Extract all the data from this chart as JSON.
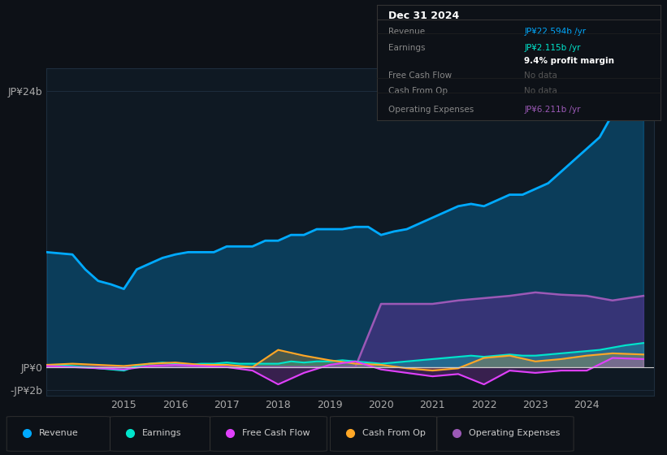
{
  "background_color": "#0d1117",
  "plot_bg_color": "#0f1923",
  "grid_color": "#1e2d3d",
  "ylim": [
    -2500000000.0,
    26000000000.0
  ],
  "xlim": [
    2013.5,
    2025.3
  ],
  "yticks": [
    -2000000000.0,
    0,
    24000000000.0
  ],
  "ytick_labels": [
    "-JP¥2b",
    "JP¥0",
    "JP¥24b"
  ],
  "xtick_years": [
    2015,
    2016,
    2017,
    2018,
    2019,
    2020,
    2021,
    2022,
    2023,
    2024
  ],
  "legend_items": [
    {
      "label": "Revenue",
      "color": "#00aaff"
    },
    {
      "label": "Earnings",
      "color": "#00e5cc"
    },
    {
      "label": "Free Cash Flow",
      "color": "#e040fb"
    },
    {
      "label": "Cash From Op",
      "color": "#ffa726"
    },
    {
      "label": "Operating Expenses",
      "color": "#9b59b6"
    }
  ],
  "tooltip_title": "Dec 31 2024",
  "tooltip_rows": [
    {
      "label": "Revenue",
      "value": "JP¥22.594b /yr",
      "value_color": "#00aaff",
      "label_color": "#888888"
    },
    {
      "label": "Earnings",
      "value": "JP¥2.115b /yr",
      "value_color": "#00e5cc",
      "label_color": "#888888"
    },
    {
      "label": "",
      "value": "9.4% profit margin",
      "value_color": "#ffffff",
      "label_color": "#888888"
    },
    {
      "label": "Free Cash Flow",
      "value": "No data",
      "value_color": "#555555",
      "label_color": "#888888"
    },
    {
      "label": "Cash From Op",
      "value": "No data",
      "value_color": "#555555",
      "label_color": "#888888"
    },
    {
      "label": "Operating Expenses",
      "value": "JP¥6.211b /yr",
      "value_color": "#9b59b6",
      "label_color": "#888888"
    }
  ],
  "revenue_x": [
    2013.5,
    2014.0,
    2014.25,
    2014.5,
    2014.75,
    2015.0,
    2015.25,
    2015.5,
    2015.75,
    2016.0,
    2016.25,
    2016.5,
    2016.75,
    2017.0,
    2017.25,
    2017.5,
    2017.75,
    2018.0,
    2018.25,
    2018.5,
    2018.75,
    2019.0,
    2019.25,
    2019.5,
    2019.75,
    2020.0,
    2020.25,
    2020.5,
    2020.75,
    2021.0,
    2021.25,
    2021.5,
    2021.75,
    2022.0,
    2022.25,
    2022.5,
    2022.75,
    2023.0,
    2023.25,
    2023.5,
    2023.75,
    2024.0,
    2024.25,
    2024.5,
    2024.75,
    2025.1
  ],
  "revenue_y": [
    10000000000.0,
    9800000000.0,
    8500000000.0,
    7500000000.0,
    7200000000.0,
    6800000000.0,
    8500000000.0,
    9000000000.0,
    9500000000.0,
    9800000000.0,
    10000000000.0,
    10000000000.0,
    10000000000.0,
    10500000000.0,
    10500000000.0,
    10500000000.0,
    11000000000.0,
    11000000000.0,
    11500000000.0,
    11500000000.0,
    12000000000.0,
    12000000000.0,
    12000000000.0,
    12200000000.0,
    12200000000.0,
    11500000000.0,
    11800000000.0,
    12000000000.0,
    12500000000.0,
    13000000000.0,
    13500000000.0,
    14000000000.0,
    14200000000.0,
    14000000000.0,
    14500000000.0,
    15000000000.0,
    15000000000.0,
    15500000000.0,
    16000000000.0,
    17000000000.0,
    18000000000.0,
    19000000000.0,
    20000000000.0,
    22000000000.0,
    24000000000.0,
    22600000000.0
  ],
  "earnings_x": [
    2013.5,
    2014.0,
    2014.25,
    2014.5,
    2014.75,
    2015.0,
    2015.25,
    2015.5,
    2015.75,
    2016.0,
    2016.25,
    2016.5,
    2016.75,
    2017.0,
    2017.25,
    2017.5,
    2017.75,
    2018.0,
    2018.25,
    2018.5,
    2018.75,
    2019.0,
    2019.25,
    2019.5,
    2019.75,
    2020.0,
    2020.25,
    2020.5,
    2020.75,
    2021.0,
    2021.25,
    2021.5,
    2021.75,
    2022.0,
    2022.25,
    2022.5,
    2022.75,
    2023.0,
    2023.25,
    2023.5,
    2023.75,
    2024.0,
    2024.25,
    2024.5,
    2024.75,
    2025.1
  ],
  "earnings_y": [
    200000000.0,
    100000000.0,
    0,
    -100000000.0,
    -200000000.0,
    -300000000.0,
    100000000.0,
    300000000.0,
    400000000.0,
    300000000.0,
    200000000.0,
    300000000.0,
    300000000.0,
    400000000.0,
    300000000.0,
    300000000.0,
    300000000.0,
    300000000.0,
    500000000.0,
    400000000.0,
    500000000.0,
    500000000.0,
    600000000.0,
    500000000.0,
    400000000.0,
    300000000.0,
    400000000.0,
    500000000.0,
    600000000.0,
    700000000.0,
    800000000.0,
    900000000.0,
    1000000000.0,
    900000000.0,
    1000000000.0,
    1100000000.0,
    1000000000.0,
    1000000000.0,
    1100000000.0,
    1200000000.0,
    1300000000.0,
    1400000000.0,
    1500000000.0,
    1700000000.0,
    1900000000.0,
    2100000000.0
  ],
  "fcf_x": [
    2013.5,
    2014.0,
    2014.5,
    2015.0,
    2015.5,
    2016.0,
    2016.5,
    2017.0,
    2017.5,
    2018.0,
    2018.5,
    2019.0,
    2019.5,
    2020.0,
    2020.5,
    2021.0,
    2021.5,
    2022.0,
    2022.5,
    2023.0,
    2023.5,
    2024.0,
    2024.5,
    2025.1
  ],
  "fcf_y": [
    100000000.0,
    0,
    -100000000.0,
    -200000000.0,
    100000000.0,
    200000000.0,
    100000000.0,
    0,
    -300000000.0,
    -1500000000.0,
    -500000000.0,
    200000000.0,
    500000000.0,
    -200000000.0,
    -500000000.0,
    -800000000.0,
    -600000000.0,
    -1500000000.0,
    -300000000.0,
    -500000000.0,
    -300000000.0,
    -300000000.0,
    800000000.0,
    700000000.0
  ],
  "cfo_x": [
    2013.5,
    2014.0,
    2014.5,
    2015.0,
    2015.5,
    2016.0,
    2016.5,
    2017.0,
    2017.5,
    2018.0,
    2018.5,
    2019.0,
    2019.5,
    2020.0,
    2020.5,
    2021.0,
    2021.5,
    2022.0,
    2022.5,
    2023.0,
    2023.5,
    2024.0,
    2024.5,
    2025.1
  ],
  "cfo_y": [
    200000000.0,
    300000000.0,
    200000000.0,
    100000000.0,
    300000000.0,
    400000000.0,
    200000000.0,
    200000000.0,
    0,
    1500000000.0,
    1000000000.0,
    600000000.0,
    300000000.0,
    200000000.0,
    -100000000.0,
    -300000000.0,
    -100000000.0,
    800000000.0,
    1000000000.0,
    500000000.0,
    700000000.0,
    1000000000.0,
    1200000000.0,
    1100000000.0
  ],
  "opex_x": [
    2013.5,
    2014.0,
    2014.5,
    2015.0,
    2015.5,
    2016.0,
    2016.5,
    2017.0,
    2017.5,
    2018.0,
    2018.5,
    2019.0,
    2019.5,
    2020.0,
    2020.5,
    2021.0,
    2021.5,
    2022.0,
    2022.5,
    2023.0,
    2023.5,
    2024.0,
    2024.5,
    2025.1
  ],
  "opex_y": [
    0,
    0,
    0,
    0,
    0,
    0,
    0,
    0,
    0,
    0,
    0,
    0,
    0,
    5500000000.0,
    5500000000.0,
    5500000000.0,
    5800000000.0,
    6000000000.0,
    6200000000.0,
    6500000000.0,
    6300000000.0,
    6200000000.0,
    5800000000.0,
    6200000000.0
  ]
}
